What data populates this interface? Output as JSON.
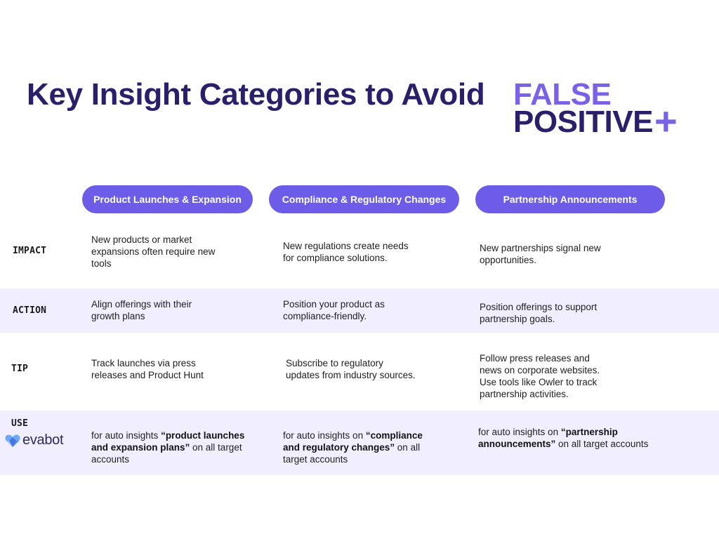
{
  "title": {
    "main": "Key Insight Categories to Avoid",
    "brand_false": "FALSE",
    "brand_positive": "POSITIVE",
    "brand_plus": "+"
  },
  "columns": [
    "Product Launches & Expansion",
    "Compliance & Regulatory Changes",
    "Partnership Announcements"
  ],
  "rows": {
    "impact": {
      "label": "IMPACT",
      "cells": [
        "New products or market\nexpansions often require new\ntools",
        "New regulations create needs\nfor compliance solutions.",
        "New partnerships signal new\nopportunities."
      ]
    },
    "action": {
      "label": "ACTION",
      "cells": [
        "Align offerings with their\ngrowth plans",
        "Position your product as\ncompliance-friendly.",
        "Position offerings to support\npartnership goals."
      ]
    },
    "tip": {
      "label": "TIP",
      "cells": [
        "Track launches via press\nreleases and Product Hunt",
        "Subscribe to regulatory\nupdates from industry sources.",
        "Follow press releases and\nnews on corporate websites.\nUse tools like Owler to track\npartnership activities."
      ]
    },
    "use": {
      "label": "USE",
      "logo_text": "evabot",
      "cells": [
        {
          "prefix": "for auto insights ",
          "bold": "“product launches and expansion plans”",
          "suffix": " on all target accounts"
        },
        {
          "prefix": "for auto insights on ",
          "bold": "“compliance and regulatory changes”",
          "suffix": " on all target accounts"
        },
        {
          "prefix": "for auto insights on ",
          "bold": "“partnership announcements”",
          "suffix": " on all target accounts"
        }
      ]
    }
  },
  "colors": {
    "title": "#2a1f6b",
    "accent": "#7b61e8",
    "pill": "#6c5ce7",
    "band": "#f1efff"
  },
  "icons": {
    "logo": "evabot-heart-logo"
  }
}
